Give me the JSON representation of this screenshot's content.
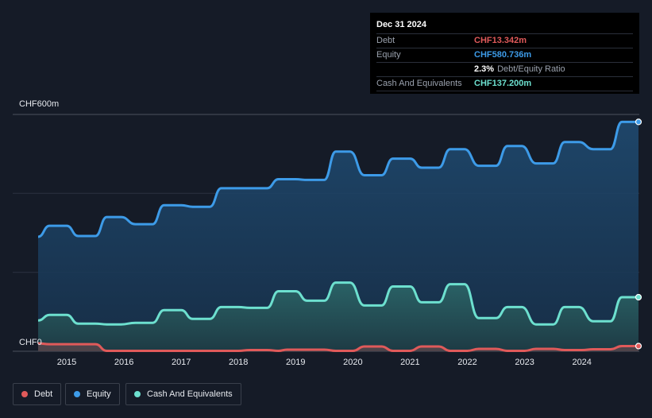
{
  "tooltip": {
    "date": "Dec 31 2024",
    "rows": [
      {
        "label": "Debt",
        "value": "CHF13.342m",
        "color": "#e05a5a"
      },
      {
        "label": "Equity",
        "value": "CHF580.736m",
        "color": "#3d9be8"
      },
      {
        "label": "Cash And Equivalents",
        "value": "CHF137.200m",
        "color": "#6de0cf"
      }
    ],
    "ratio_value": "2.3%",
    "ratio_label": "Debt/Equity Ratio"
  },
  "legend": [
    {
      "label": "Debt",
      "color": "#e05a5a"
    },
    {
      "label": "Equity",
      "color": "#3d9be8"
    },
    {
      "label": "Cash And Equivalents",
      "color": "#6de0cf"
    }
  ],
  "chart_data": {
    "type": "area",
    "x_ticks": [
      "2015",
      "2016",
      "2017",
      "2018",
      "2019",
      "2020",
      "2021",
      "2022",
      "2023",
      "2024"
    ],
    "y_labels": {
      "top": "CHF600m",
      "bottom": "CHF0"
    },
    "ylim": [
      0,
      600
    ],
    "unit": "CHF m",
    "grid": true,
    "series": [
      {
        "name": "Equity",
        "color": "#3d9be8",
        "points": [
          [
            2014.5,
            290
          ],
          [
            2014.7,
            318
          ],
          [
            2014.85,
            318
          ],
          [
            2015.0,
            318
          ],
          [
            2015.2,
            292
          ],
          [
            2015.5,
            292
          ],
          [
            2015.7,
            340
          ],
          [
            2015.95,
            340
          ],
          [
            2016.2,
            322
          ],
          [
            2016.5,
            322
          ],
          [
            2016.7,
            370
          ],
          [
            2017.0,
            370
          ],
          [
            2017.2,
            366
          ],
          [
            2017.5,
            366
          ],
          [
            2017.7,
            413
          ],
          [
            2018.5,
            413
          ],
          [
            2018.7,
            436
          ],
          [
            2019.0,
            436
          ],
          [
            2019.2,
            434
          ],
          [
            2019.5,
            434
          ],
          [
            2019.7,
            506
          ],
          [
            2019.95,
            506
          ],
          [
            2020.2,
            446
          ],
          [
            2020.5,
            446
          ],
          [
            2020.7,
            488
          ],
          [
            2021.0,
            488
          ],
          [
            2021.2,
            465
          ],
          [
            2021.5,
            465
          ],
          [
            2021.7,
            512
          ],
          [
            2021.95,
            512
          ],
          [
            2022.2,
            470
          ],
          [
            2022.5,
            470
          ],
          [
            2022.7,
            520
          ],
          [
            2022.95,
            520
          ],
          [
            2023.2,
            476
          ],
          [
            2023.5,
            476
          ],
          [
            2023.7,
            530
          ],
          [
            2023.95,
            530
          ],
          [
            2024.2,
            512
          ],
          [
            2024.5,
            512
          ],
          [
            2024.7,
            581
          ],
          [
            2024.99,
            581
          ]
        ]
      },
      {
        "name": "Cash And Equivalents",
        "color": "#6de0cf",
        "points": [
          [
            2014.5,
            78
          ],
          [
            2014.7,
            92
          ],
          [
            2014.85,
            92
          ],
          [
            2015.0,
            92
          ],
          [
            2015.2,
            70
          ],
          [
            2015.5,
            70
          ],
          [
            2015.7,
            68
          ],
          [
            2015.95,
            68
          ],
          [
            2016.2,
            72
          ],
          [
            2016.5,
            72
          ],
          [
            2016.7,
            104
          ],
          [
            2017.0,
            104
          ],
          [
            2017.2,
            82
          ],
          [
            2017.5,
            82
          ],
          [
            2017.7,
            112
          ],
          [
            2018.0,
            112
          ],
          [
            2018.2,
            110
          ],
          [
            2018.5,
            110
          ],
          [
            2018.7,
            152
          ],
          [
            2019.0,
            152
          ],
          [
            2019.2,
            128
          ],
          [
            2019.5,
            128
          ],
          [
            2019.7,
            174
          ],
          [
            2019.95,
            174
          ],
          [
            2020.2,
            116
          ],
          [
            2020.5,
            116
          ],
          [
            2020.7,
            164
          ],
          [
            2021.0,
            164
          ],
          [
            2021.2,
            124
          ],
          [
            2021.5,
            124
          ],
          [
            2021.7,
            170
          ],
          [
            2021.95,
            170
          ],
          [
            2022.2,
            84
          ],
          [
            2022.5,
            84
          ],
          [
            2022.7,
            112
          ],
          [
            2022.95,
            112
          ],
          [
            2023.2,
            68
          ],
          [
            2023.5,
            68
          ],
          [
            2023.7,
            112
          ],
          [
            2023.95,
            112
          ],
          [
            2024.2,
            76
          ],
          [
            2024.5,
            76
          ],
          [
            2024.7,
            137
          ],
          [
            2024.99,
            137
          ]
        ]
      },
      {
        "name": "Debt",
        "color": "#e05a5a",
        "points": [
          [
            2014.5,
            20
          ],
          [
            2014.7,
            18
          ],
          [
            2015.5,
            18
          ],
          [
            2015.7,
            1
          ],
          [
            2018.0,
            1
          ],
          [
            2018.2,
            3
          ],
          [
            2018.5,
            3
          ],
          [
            2018.7,
            1
          ],
          [
            2018.85,
            4
          ],
          [
            2019.5,
            4
          ],
          [
            2019.7,
            1
          ],
          [
            2020.0,
            1
          ],
          [
            2020.2,
            12
          ],
          [
            2020.5,
            12
          ],
          [
            2020.7,
            1
          ],
          [
            2021.0,
            1
          ],
          [
            2021.2,
            12
          ],
          [
            2021.5,
            12
          ],
          [
            2021.7,
            1
          ],
          [
            2022.0,
            1
          ],
          [
            2022.2,
            6
          ],
          [
            2022.5,
            6
          ],
          [
            2022.7,
            1
          ],
          [
            2023.0,
            1
          ],
          [
            2023.2,
            6
          ],
          [
            2023.5,
            6
          ],
          [
            2023.7,
            3
          ],
          [
            2024.0,
            3
          ],
          [
            2024.2,
            5
          ],
          [
            2024.5,
            5
          ],
          [
            2024.7,
            13
          ],
          [
            2024.99,
            13
          ]
        ]
      }
    ]
  }
}
